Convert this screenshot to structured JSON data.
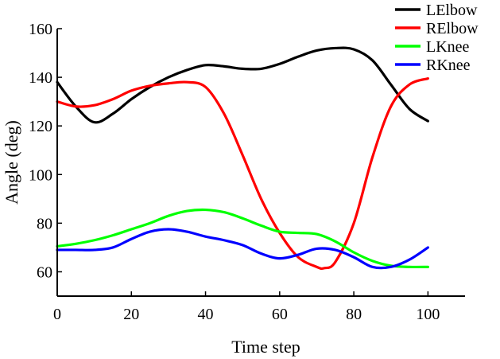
{
  "chart_data": {
    "type": "line",
    "title": "",
    "xlabel": "Time step",
    "ylabel": "Angle (deg)",
    "xlim": [
      0,
      110
    ],
    "ylim": [
      50,
      160
    ],
    "xticks": [
      0,
      20,
      40,
      60,
      80,
      100
    ],
    "yticks": [
      60,
      80,
      100,
      120,
      140,
      160
    ],
    "x_tick_labels": [
      "0",
      "20",
      "40",
      "60",
      "80",
      "100"
    ],
    "y_tick_labels": [
      "60",
      "80",
      "100",
      "120",
      "140",
      "160"
    ],
    "grid": false,
    "legend_position": "top-right",
    "series": [
      {
        "name": "LElbow",
        "color": "#000000",
        "x": [
          0,
          5,
          10,
          15,
          20,
          25,
          30,
          35,
          40,
          45,
          50,
          55,
          60,
          65,
          70,
          75,
          80,
          85,
          90,
          95,
          100
        ],
        "values": [
          138,
          128,
          121.5,
          125,
          131,
          136,
          140,
          143,
          145,
          144.5,
          143.5,
          143.5,
          145.5,
          148.5,
          151,
          152,
          151.5,
          147,
          137,
          127,
          122
        ]
      },
      {
        "name": "RElbow",
        "color": "#ff0000",
        "x": [
          0,
          5,
          10,
          15,
          20,
          25,
          30,
          35,
          40,
          45,
          50,
          55,
          60,
          65,
          70,
          72,
          75,
          80,
          85,
          90,
          95,
          100
        ],
        "values": [
          130,
          128,
          128.5,
          131,
          134.5,
          136.5,
          137.5,
          138,
          136,
          125,
          108,
          90,
          76,
          66,
          62,
          61.5,
          64,
          80,
          107,
          128,
          137,
          139.5
        ]
      },
      {
        "name": "LKnee",
        "color": "#00ff00",
        "x": [
          0,
          5,
          10,
          15,
          20,
          25,
          30,
          35,
          40,
          45,
          50,
          55,
          60,
          65,
          70,
          75,
          80,
          85,
          90,
          95,
          100
        ],
        "values": [
          70.5,
          71.5,
          73,
          75,
          77.5,
          80,
          83,
          85,
          85.5,
          84.5,
          82,
          79,
          76.5,
          76,
          75.5,
          72.5,
          68,
          64.5,
          62.5,
          62,
          62
        ]
      },
      {
        "name": "RKnee",
        "color": "#0000ff",
        "x": [
          0,
          5,
          10,
          15,
          20,
          25,
          30,
          35,
          40,
          45,
          50,
          55,
          60,
          65,
          70,
          75,
          80,
          85,
          90,
          95,
          100
        ],
        "values": [
          69,
          69,
          69,
          70,
          73.5,
          76.5,
          77.5,
          76.5,
          74.5,
          73,
          71,
          67.5,
          65.5,
          67,
          69.5,
          69,
          66,
          62,
          62,
          65,
          70
        ]
      }
    ]
  }
}
